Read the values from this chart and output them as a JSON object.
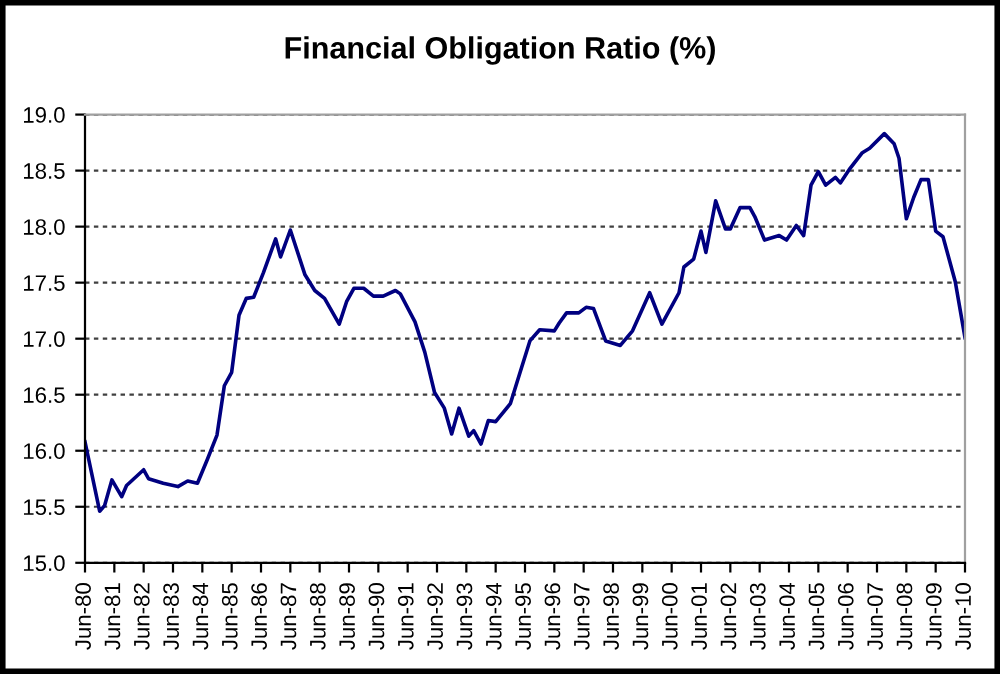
{
  "chart_data": {
    "type": "line",
    "title": "Financial Obligation Ratio (%)",
    "x": [
      "1980-06",
      "1980-12",
      "1981-02",
      "1981-05",
      "1981-09",
      "1981-11",
      "1982-06",
      "1982-08",
      "1983-02",
      "1983-08",
      "1983-12",
      "1984-04",
      "1984-08",
      "1984-12",
      "1985-03",
      "1985-06",
      "1985-09",
      "1985-12",
      "1986-03",
      "1986-07",
      "1986-12",
      "1987-02",
      "1987-06",
      "1987-12",
      "1988-04",
      "1988-08",
      "1989-02",
      "1989-05",
      "1989-08",
      "1989-12",
      "1990-04",
      "1990-08",
      "1991-01",
      "1991-03",
      "1991-09",
      "1992-01",
      "1992-05",
      "1992-09",
      "1992-12",
      "1993-03",
      "1993-07",
      "1993-09",
      "1993-12",
      "1994-03",
      "1994-06",
      "1994-12",
      "1995-04",
      "1995-08",
      "1995-12",
      "1996-06",
      "1996-08",
      "1996-11",
      "1997-04",
      "1997-07",
      "1997-10",
      "1998-03",
      "1998-09",
      "1999-02",
      "1999-09",
      "2000-02",
      "2000-09",
      "2000-11",
      "2001-03",
      "2001-06",
      "2001-08",
      "2001-12",
      "2002-04",
      "2002-06",
      "2002-10",
      "2003-02",
      "2003-04",
      "2003-08",
      "2004-02",
      "2004-05",
      "2004-09",
      "2004-12",
      "2005-03",
      "2005-06",
      "2005-09",
      "2006-01",
      "2006-03",
      "2006-07",
      "2006-12",
      "2007-03",
      "2007-09",
      "2008-01",
      "2008-03",
      "2008-06",
      "2008-09",
      "2008-12",
      "2009-03",
      "2009-06",
      "2009-09",
      "2010-02",
      "2010-06"
    ],
    "series": [
      {
        "color": "#000080",
        "values": [
          16.08,
          15.46,
          15.51,
          15.74,
          15.59,
          15.69,
          15.83,
          15.75,
          15.71,
          15.68,
          15.73,
          15.71,
          15.92,
          16.14,
          16.58,
          16.7,
          17.21,
          17.36,
          17.37,
          17.59,
          17.89,
          17.73,
          17.97,
          17.57,
          17.43,
          17.36,
          17.13,
          17.33,
          17.45,
          17.45,
          17.38,
          17.38,
          17.43,
          17.4,
          17.15,
          16.88,
          16.52,
          16.38,
          16.15,
          16.38,
          16.13,
          16.18,
          16.06,
          16.27,
          16.26,
          16.42,
          16.7,
          16.98,
          17.08,
          17.07,
          17.14,
          17.23,
          17.23,
          17.28,
          17.27,
          16.98,
          16.94,
          17.07,
          17.41,
          17.13,
          17.41,
          17.64,
          17.71,
          17.96,
          17.77,
          18.23,
          17.98,
          17.98,
          18.17,
          18.17,
          18.09,
          17.88,
          17.92,
          17.88,
          18.01,
          17.92,
          18.37,
          18.49,
          18.37,
          18.44,
          18.39,
          18.52,
          18.66,
          18.7,
          18.83,
          18.74,
          18.61,
          18.07,
          18.26,
          18.42,
          18.42,
          17.96,
          17.91,
          17.51,
          17.01
        ]
      }
    ],
    "xlim": [
      "1980-06",
      "2010-06"
    ],
    "xticks": [
      {
        "value": "1980-06",
        "label": "Jun-80"
      },
      {
        "value": "1981-06",
        "label": "Jun-81"
      },
      {
        "value": "1982-06",
        "label": "Jun-82"
      },
      {
        "value": "1983-06",
        "label": "Jun-83"
      },
      {
        "value": "1984-06",
        "label": "Jun-84"
      },
      {
        "value": "1985-06",
        "label": "Jun-85"
      },
      {
        "value": "1986-06",
        "label": "Jun-86"
      },
      {
        "value": "1987-06",
        "label": "Jun-87"
      },
      {
        "value": "1988-06",
        "label": "Jun-88"
      },
      {
        "value": "1989-06",
        "label": "Jun-89"
      },
      {
        "value": "1990-06",
        "label": "Jun-90"
      },
      {
        "value": "1991-06",
        "label": "Jun-91"
      },
      {
        "value": "1992-06",
        "label": "Jun-92"
      },
      {
        "value": "1993-06",
        "label": "Jun-93"
      },
      {
        "value": "1994-06",
        "label": "Jun-94"
      },
      {
        "value": "1995-06",
        "label": "Jun-95"
      },
      {
        "value": "1996-06",
        "label": "Jun-96"
      },
      {
        "value": "1997-06",
        "label": "Jun-97"
      },
      {
        "value": "1998-06",
        "label": "Jun-98"
      },
      {
        "value": "1999-06",
        "label": "Jun-99"
      },
      {
        "value": "2000-06",
        "label": "Jun-00"
      },
      {
        "value": "2001-06",
        "label": "Jun-01"
      },
      {
        "value": "2002-06",
        "label": "Jun-02"
      },
      {
        "value": "2003-06",
        "label": "Jun-03"
      },
      {
        "value": "2004-06",
        "label": "Jun-04"
      },
      {
        "value": "2005-06",
        "label": "Jun-05"
      },
      {
        "value": "2006-06",
        "label": "Jun-06"
      },
      {
        "value": "2007-06",
        "label": "Jun-07"
      },
      {
        "value": "2008-06",
        "label": "Jun-08"
      },
      {
        "value": "2009-06",
        "label": "Jun-09"
      },
      {
        "value": "2010-06",
        "label": "Jun-10"
      }
    ],
    "ylim": [
      15.0,
      19.0
    ],
    "yticks": [
      {
        "value": 15.0,
        "label": "15.0"
      },
      {
        "value": 15.5,
        "label": "15.5"
      },
      {
        "value": 16.0,
        "label": "16.0"
      },
      {
        "value": 16.5,
        "label": "16.5"
      },
      {
        "value": 17.0,
        "label": "17.0"
      },
      {
        "value": 17.5,
        "label": "17.5"
      },
      {
        "value": 18.0,
        "label": "18.0"
      },
      {
        "value": 18.5,
        "label": "18.5"
      },
      {
        "value": 19.0,
        "label": "19.0"
      }
    ],
    "grid": "y",
    "marker": "none",
    "line_style": "solid"
  }
}
